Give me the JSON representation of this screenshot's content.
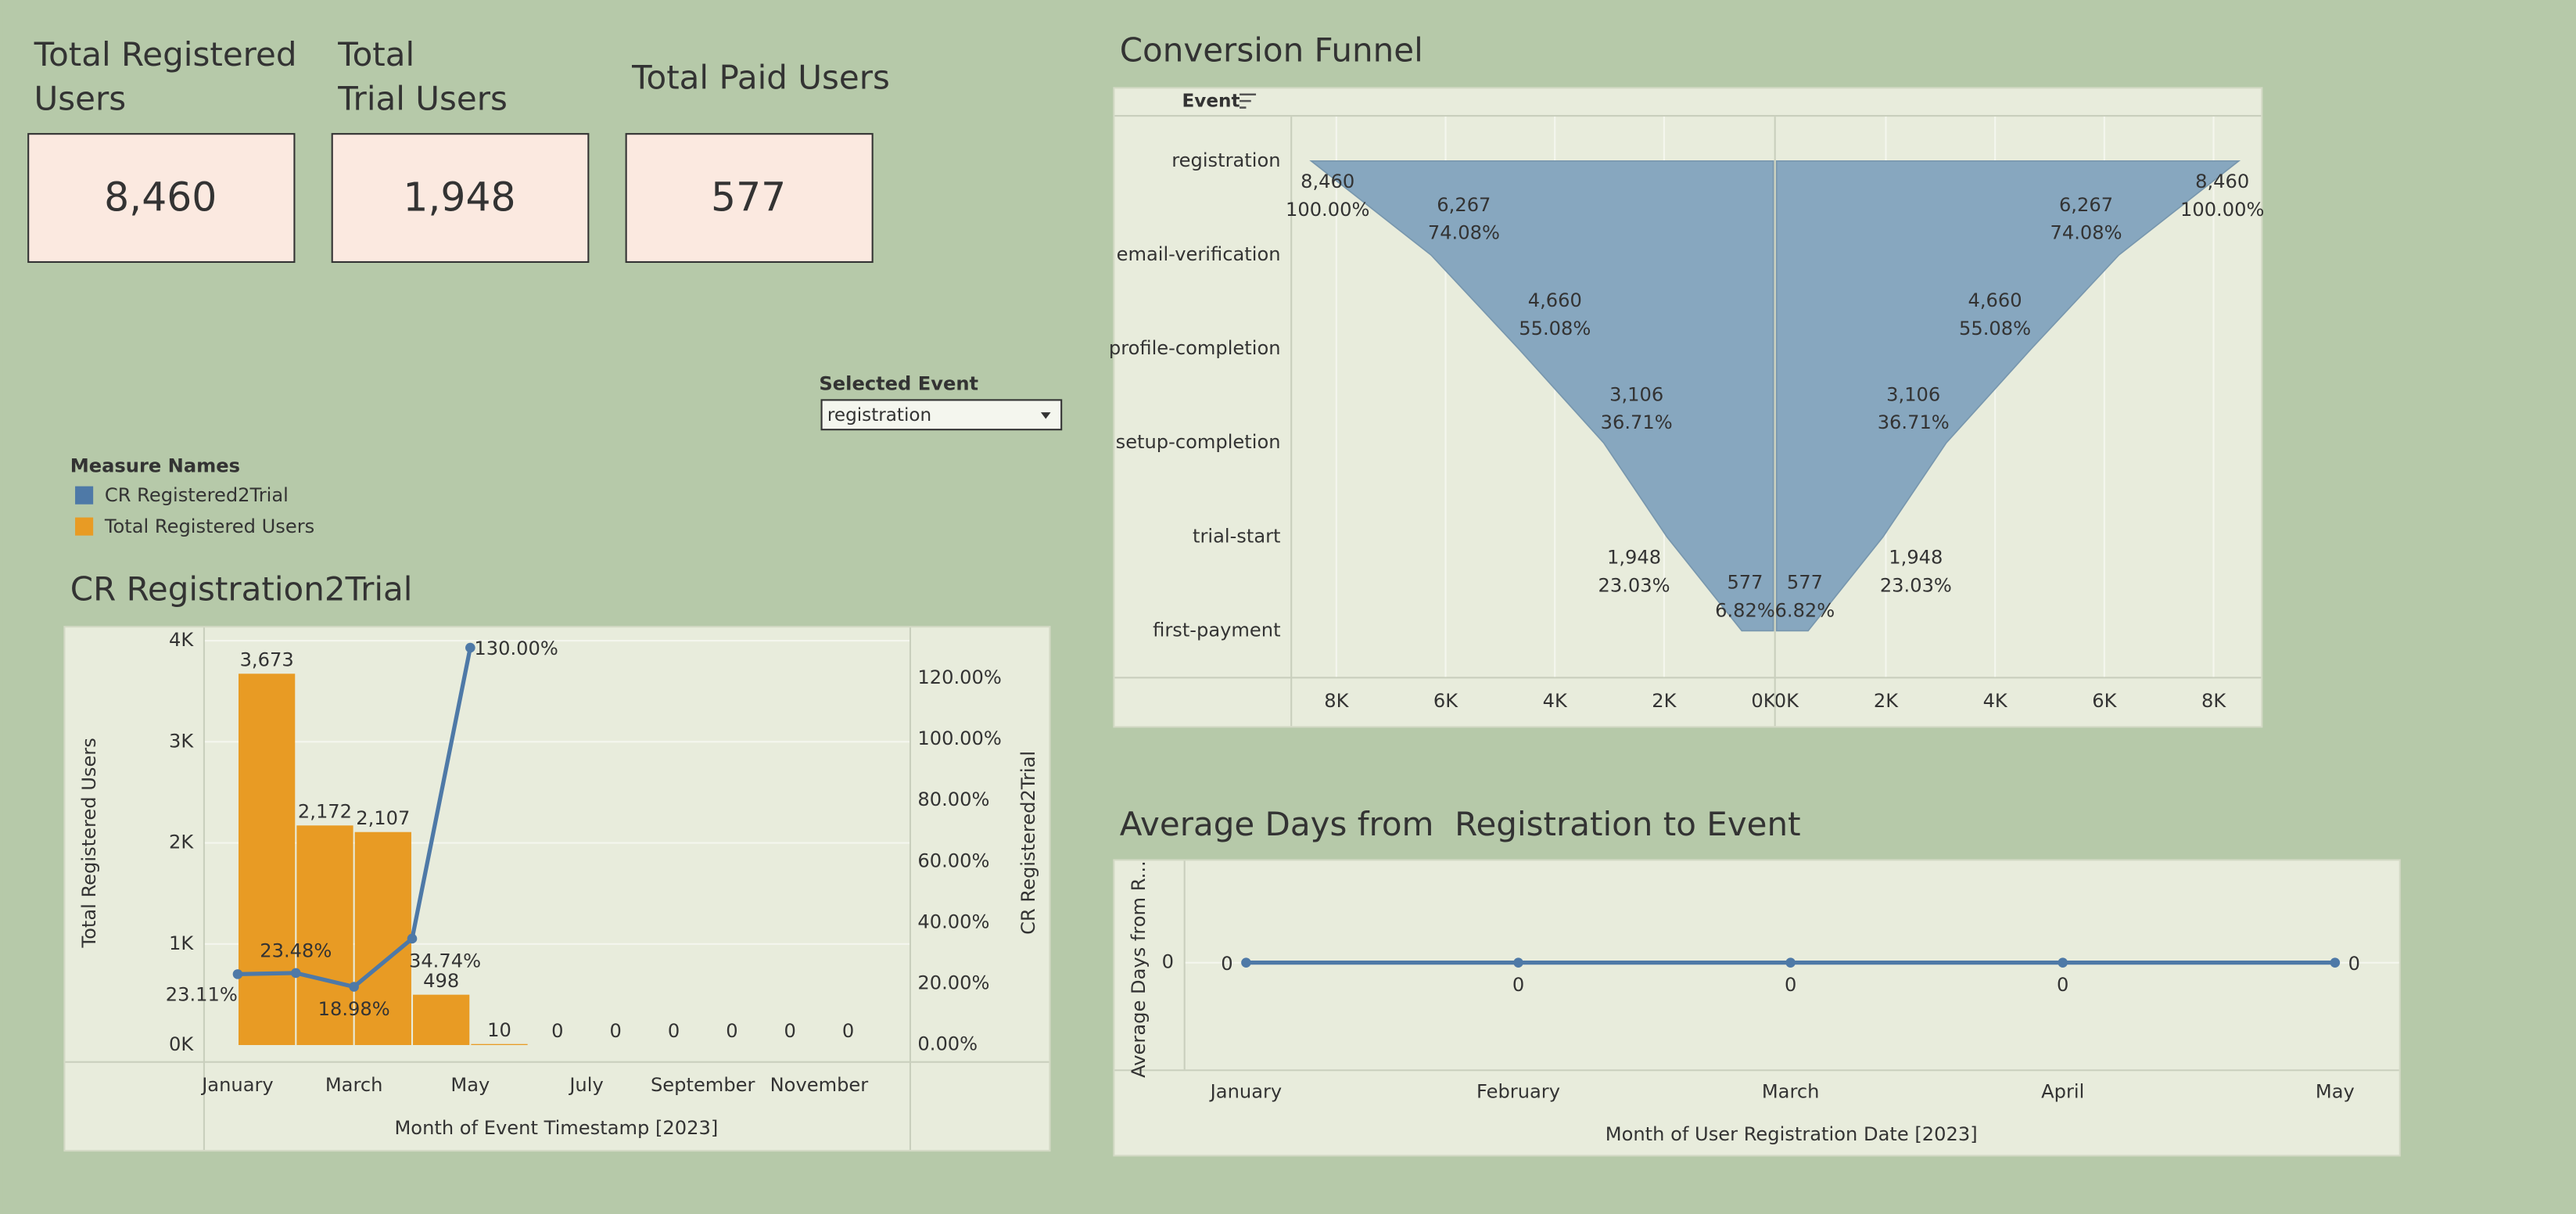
{
  "kpis": [
    {
      "title": "Total Registered\nUsers",
      "value": "8,460"
    },
    {
      "title": "Total\nTrial Users",
      "value": "1,948"
    },
    {
      "title": "Total Paid Users",
      "value": "577"
    }
  ],
  "filter": {
    "label": "Selected Event",
    "value": "registration"
  },
  "chart_data": [
    {
      "type": "funnel",
      "title": "Conversion Funnel",
      "header": "Event",
      "categories": [
        "registration",
        "email-verification",
        "profile-completion",
        "setup-completion",
        "trial-start",
        "first-payment"
      ],
      "values": [
        8460,
        6267,
        4660,
        3106,
        1948,
        577
      ],
      "value_labels": [
        "8,460",
        "6,267",
        "4,660",
        "3,106",
        "1,948",
        "577"
      ],
      "percents": [
        100,
        74.08,
        55.08,
        36.71,
        23.03,
        6.82
      ],
      "percent_labels": [
        "100.00%",
        "74.08%",
        "55.08%",
        "36.71%",
        "23.03%",
        "6.82%"
      ],
      "color": "#87a7bf",
      "xlim": [
        0,
        8840
      ],
      "xticks": [
        {
          "value": 0,
          "label": "0K"
        },
        {
          "value": 2000,
          "label": "2K"
        },
        {
          "value": 4000,
          "label": "4K"
        },
        {
          "value": 6000,
          "label": "6K"
        },
        {
          "value": 8000,
          "label": "8K"
        }
      ],
      "grid": true
    },
    {
      "type": "combo",
      "title": "CR Registration2Trial",
      "legend_title": "Measure Names",
      "categories": [
        "January",
        null,
        "March",
        null,
        "May",
        null,
        "July",
        null,
        "September",
        null,
        "November"
      ],
      "series": [
        {
          "name": "CR Registered2Trial",
          "color": "#4e79a7",
          "type": "line",
          "axis": "y2",
          "values": [
            23.11,
            23.48,
            18.98,
            34.74,
            130,
            null,
            null,
            null,
            null,
            null,
            null
          ],
          "value_labels": [
            "23.11%",
            "23.48%",
            "18.98%",
            "34.74%",
            "130.00%",
            null,
            null,
            null,
            null,
            null,
            null
          ]
        },
        {
          "name": "Total Registered Users",
          "color": "#e89b24",
          "type": "bar",
          "values": [
            3673,
            2172,
            2107,
            498,
            10,
            0,
            0,
            0,
            0,
            0,
            0
          ],
          "value_labels": [
            "3,673",
            "2,172",
            "2,107",
            "498",
            "10",
            "0",
            "0",
            "0",
            "0",
            "0",
            "0"
          ]
        }
      ],
      "xlabel": "Month of Event Timestamp [2023]",
      "ylabel": "Total Registered Users",
      "y2label": "CR Registered2Trial",
      "ylim": [
        -160,
        4130
      ],
      "yticks": [
        {
          "value": 0,
          "label": "0K"
        },
        {
          "value": 1000,
          "label": "1K"
        },
        {
          "value": 2000,
          "label": "2K"
        },
        {
          "value": 3000,
          "label": "3K"
        },
        {
          "value": 4000,
          "label": "4K"
        }
      ],
      "y2lim": [
        -5.4,
        136.6
      ],
      "y2ticks": [
        {
          "value": 0,
          "label": "0.00%"
        },
        {
          "value": 20,
          "label": "20.00%"
        },
        {
          "value": 40,
          "label": "40.00%"
        },
        {
          "value": 60,
          "label": "60.00%"
        },
        {
          "value": 80,
          "label": "80.00%"
        },
        {
          "value": 100,
          "label": "100.00%"
        },
        {
          "value": 120,
          "label": "120.00%"
        }
      ],
      "grid": true
    },
    {
      "type": "line",
      "title": "Average Days from  Registration to Event",
      "categories": [
        "January",
        "February",
        "March",
        "April",
        "May"
      ],
      "values": [
        0,
        0,
        0,
        0,
        0
      ],
      "color": "#4e79a7",
      "ylabel": "Average Days from R...",
      "xlabel": "Month of User Registration Date [2023]",
      "ylim": [
        -1,
        1
      ],
      "yticks": [
        0
      ],
      "grid": true
    }
  ]
}
